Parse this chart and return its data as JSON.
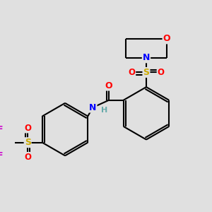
{
  "bg_color": "#e0e0e0",
  "bond_color": "#000000",
  "atom_colors": {
    "O": "#ff0000",
    "N": "#0000ff",
    "S": "#ccaa00",
    "F": "#cc00cc",
    "H": "#66aaaa",
    "C": "#000000"
  }
}
